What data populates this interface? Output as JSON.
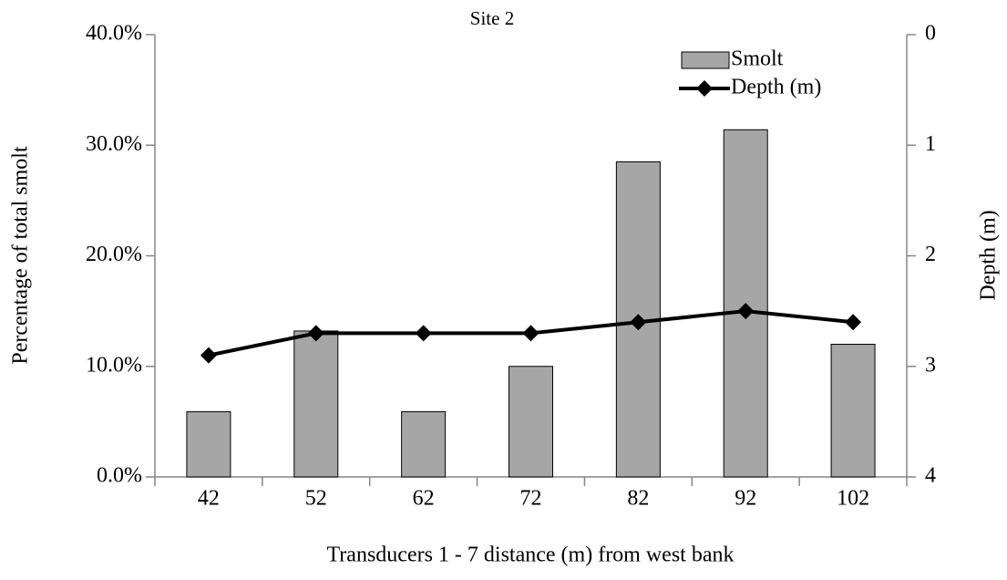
{
  "chart_data": {
    "type": "bar",
    "title": "Site 2",
    "x_label": "Transducers 1 - 7 distance (m) from west bank",
    "y_label": "Percentage of total smolt",
    "y2_label": "Depth (m)",
    "categories": [
      "42",
      "52",
      "62",
      "72",
      "82",
      "92",
      "102"
    ],
    "series": [
      {
        "name": "Smolt",
        "type": "bar",
        "color": "#a6a6a6",
        "values": [
          5.9,
          13.2,
          5.9,
          10.0,
          28.5,
          31.4,
          12.0
        ]
      },
      {
        "name": "Depth (m)",
        "type": "line",
        "axis": "y2",
        "color": "#000000",
        "values": [
          2.9,
          2.7,
          2.7,
          2.7,
          2.6,
          2.5,
          2.6
        ]
      }
    ],
    "ylim": [
      0,
      40
    ],
    "yticks": [
      {
        "value": 0,
        "label": "0.0%"
      },
      {
        "value": 10,
        "label": "10.0%"
      },
      {
        "value": 20,
        "label": "20.0%"
      },
      {
        "value": 30,
        "label": "30.0%"
      },
      {
        "value": 40,
        "label": "40.0%"
      }
    ],
    "y2lim": [
      0,
      4
    ],
    "y2ticks": [
      0,
      1,
      2,
      3,
      4
    ],
    "y2_reversed": true,
    "legend": "upper-right"
  }
}
